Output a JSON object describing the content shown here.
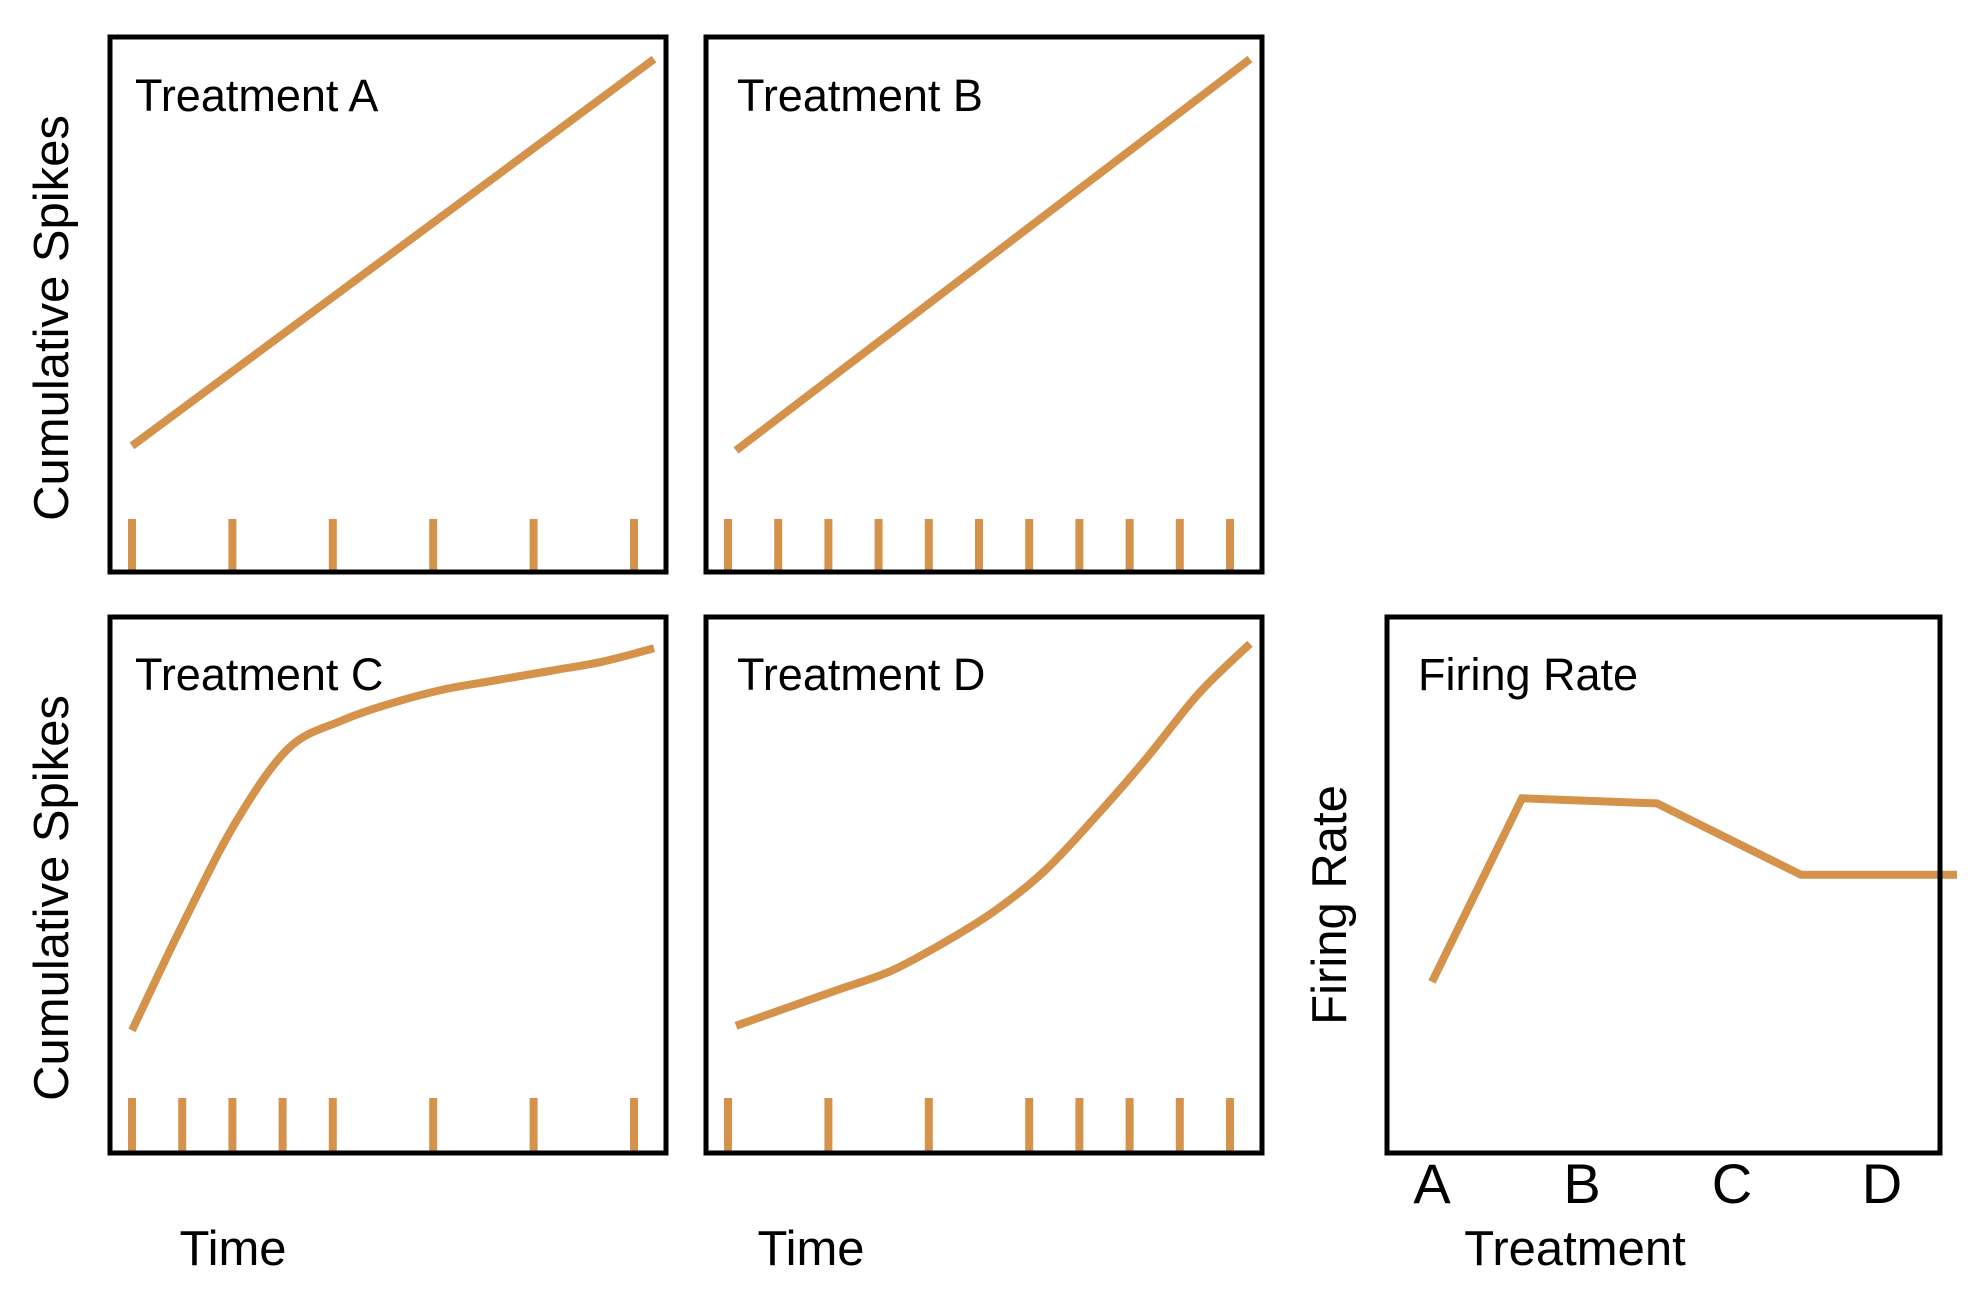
{
  "colors": {
    "line": "#D4924A",
    "frame": "#000000",
    "background": "#ffffff"
  },
  "chart_data": [
    {
      "type": "line",
      "title": "Treatment A",
      "ylabel": "Cumulative Spikes",
      "xlabel": "",
      "xlim": [
        0,
        1
      ],
      "ylim": [
        0,
        1
      ],
      "x": [
        0,
        1
      ],
      "y": [
        0.13,
        0.98
      ],
      "spikes": [
        0.0,
        0.2,
        0.4,
        0.6,
        0.8,
        1.0
      ]
    },
    {
      "type": "line",
      "title": "Treatment B",
      "ylabel": "",
      "xlabel": "",
      "xlim": [
        0,
        1
      ],
      "ylim": [
        0,
        1
      ],
      "x": [
        0,
        1
      ],
      "y": [
        0.12,
        0.98
      ],
      "spikes": [
        0.0,
        0.1,
        0.2,
        0.3,
        0.4,
        0.5,
        0.6,
        0.7,
        0.8,
        0.9,
        1.0
      ]
    },
    {
      "type": "line",
      "title": "Treatment C",
      "ylabel": "Cumulative Spikes",
      "xlabel": "Time",
      "xlim": [
        0,
        1
      ],
      "ylim": [
        0,
        1
      ],
      "x": [
        0.0,
        0.1,
        0.2,
        0.3,
        0.4,
        0.5,
        0.6,
        0.7,
        0.8,
        0.9,
        1.0
      ],
      "y": [
        0.12,
        0.36,
        0.58,
        0.74,
        0.8,
        0.84,
        0.87,
        0.89,
        0.91,
        0.93,
        0.96
      ],
      "spikes": [
        0.0,
        0.1,
        0.2,
        0.3,
        0.4,
        0.6,
        0.8,
        1.0
      ]
    },
    {
      "type": "line",
      "title": "Treatment D",
      "ylabel": "",
      "xlabel": "Time",
      "xlim": [
        0,
        1
      ],
      "ylim": [
        0,
        1
      ],
      "x": [
        0.0,
        0.1,
        0.2,
        0.3,
        0.4,
        0.5,
        0.6,
        0.7,
        0.8,
        0.9,
        1.0
      ],
      "y": [
        0.13,
        0.17,
        0.21,
        0.25,
        0.31,
        0.38,
        0.47,
        0.59,
        0.72,
        0.86,
        0.97
      ],
      "spikes": [
        0.0,
        0.2,
        0.4,
        0.6,
        0.7,
        0.8,
        0.9,
        1.0
      ]
    },
    {
      "type": "line",
      "title": "Firing Rate",
      "ylabel": "Firing Rate",
      "xlabel": "Treatment",
      "categories": [
        "A",
        "B",
        "C",
        "D"
      ],
      "ylim": [
        0,
        1
      ],
      "x": [
        0.0,
        0.6,
        1.5,
        2.46,
        3.5
      ],
      "y": [
        0.31,
        0.67,
        0.66,
        0.52,
        0.52
      ]
    }
  ]
}
